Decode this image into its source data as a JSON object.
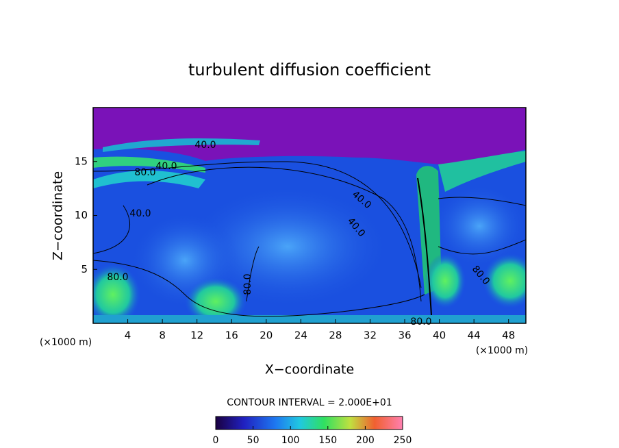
{
  "chart_data": {
    "type": "contour",
    "title": "turbulent diffusion coefficient",
    "xlabel": "X−coordinate",
    "ylabel": "Z−coordinate",
    "x_unit": "(×1000 m)",
    "y_unit": "(×1000 m)",
    "xlim": [
      0,
      50
    ],
    "xticks": [
      4,
      8,
      12,
      16,
      20,
      24,
      28,
      32,
      36,
      40,
      44,
      48
    ],
    "ylim": [
      0,
      20
    ],
    "yticks": [
      5,
      10,
      15
    ],
    "contour_labels": [
      {
        "value": 40,
        "label": "40.0"
      },
      {
        "value": 80,
        "label": "80.0"
      },
      {
        "value": 40,
        "label": "40.0"
      },
      {
        "value": 40,
        "label": "40.0"
      },
      {
        "value": 80,
        "label": "80.0"
      },
      {
        "value": 80,
        "label": "80.0"
      },
      {
        "value": 40,
        "label": "40.0"
      },
      {
        "value": 40,
        "label": "40.0"
      },
      {
        "value": 80,
        "label": "80.0"
      },
      {
        "value": 80,
        "label": "80.0"
      }
    ],
    "colorbar": {
      "title": "CONTOUR INTERVAL = 2.000E+01",
      "lim": [
        0,
        250
      ],
      "ticks": [
        0,
        50,
        100,
        150,
        200,
        250
      ]
    }
  }
}
